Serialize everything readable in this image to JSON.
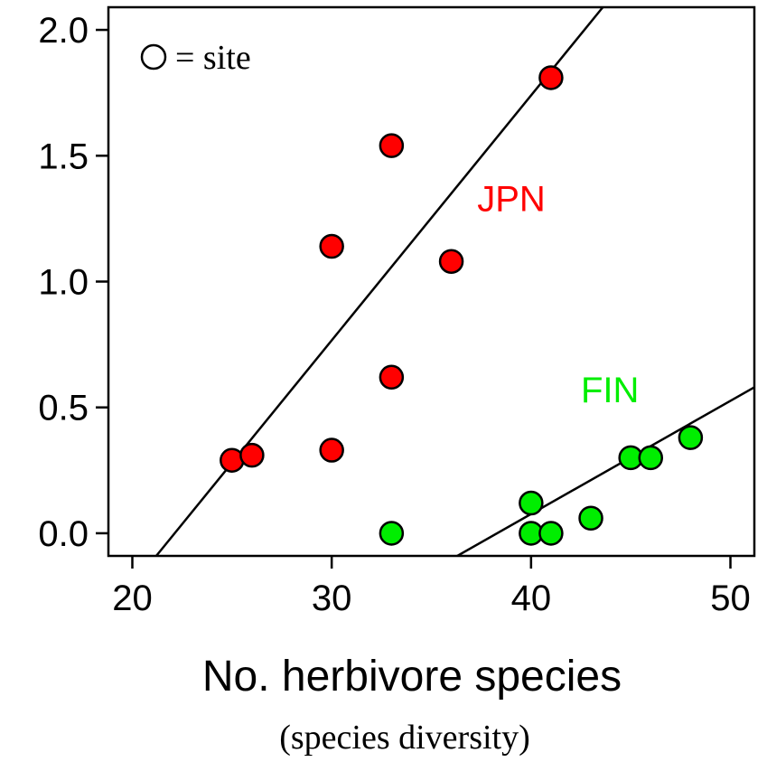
{
  "chart_data": {
    "type": "scatter",
    "title": "",
    "xlabel": "No. herbivore species",
    "subtitle": "(species diversity)",
    "ylabel": "",
    "xlim": [
      18.8,
      51.2
    ],
    "ylim": [
      -0.09,
      2.09
    ],
    "xticks": [
      20,
      30,
      40,
      50
    ],
    "yticks": [
      0.0,
      0.5,
      1.0,
      1.5,
      2.0
    ],
    "xtick_labels": [
      "20",
      "30",
      "40",
      "50"
    ],
    "ytick_labels": [
      "0.0",
      "0.5",
      "1.0",
      "1.5",
      "2.0"
    ],
    "legend": {
      "marker": "circle",
      "text": "= site",
      "placement": "top-left"
    },
    "series": [
      {
        "name": "JPN",
        "color": "#ff0000",
        "points": [
          {
            "x": 25,
            "y": 0.29
          },
          {
            "x": 26,
            "y": 0.31
          },
          {
            "x": 30,
            "y": 0.33
          },
          {
            "x": 30,
            "y": 1.14
          },
          {
            "x": 33,
            "y": 0.62
          },
          {
            "x": 33,
            "y": 1.54
          },
          {
            "x": 36,
            "y": 1.08
          },
          {
            "x": 41,
            "y": 1.81
          }
        ],
        "fit": {
          "x1": 21.2,
          "y1": -0.09,
          "x2": 43.6,
          "y2": 2.09
        }
      },
      {
        "name": "FIN",
        "color": "#00ee00",
        "points": [
          {
            "x": 33,
            "y": 0.0
          },
          {
            "x": 40,
            "y": 0.0
          },
          {
            "x": 40,
            "y": 0.12
          },
          {
            "x": 41,
            "y": 0.0
          },
          {
            "x": 43,
            "y": 0.06
          },
          {
            "x": 45,
            "y": 0.3
          },
          {
            "x": 46,
            "y": 0.3
          },
          {
            "x": 48,
            "y": 0.38
          }
        ],
        "fit": {
          "x1": 36.3,
          "y1": -0.09,
          "x2": 51.2,
          "y2": 0.58
        }
      }
    ]
  }
}
